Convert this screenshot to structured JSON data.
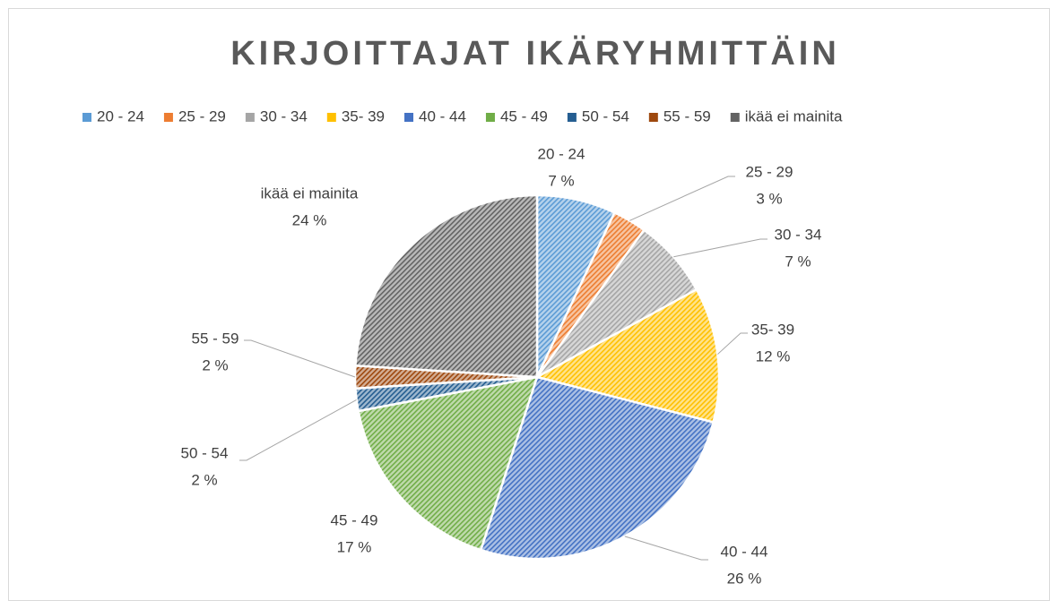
{
  "chart_data": {
    "type": "pie",
    "title": "KIRJOITTAJAT IKÄRYHMITTÄIN",
    "categories": [
      "20 - 24",
      "25 - 29",
      "30 - 34",
      "35- 39",
      "40 - 44",
      "45 - 49",
      "50 - 54",
      "55 - 59",
      "ikää ei mainita"
    ],
    "values": [
      7,
      3,
      7,
      12,
      26,
      17,
      2,
      2,
      24
    ],
    "value_labels": [
      "7 %",
      "3 %",
      "7 %",
      "12 %",
      "26 %",
      "17 %",
      "2 %",
      "2 %",
      "24 %"
    ],
    "colors": [
      "#5b9bd5",
      "#ed7d31",
      "#a5a5a5",
      "#ffc000",
      "#4472c4",
      "#70ad47",
      "#255e91",
      "#9e480e",
      "#636363"
    ],
    "legend": "top"
  }
}
